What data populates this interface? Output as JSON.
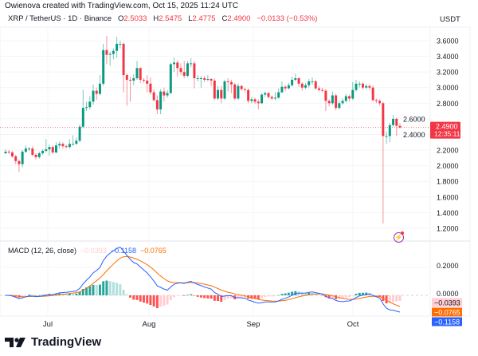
{
  "credit": "Owienova created with TradingView.com, Oct 15, 2025 11:24 UTC",
  "legend": {
    "symbol": "XRP / TetherUS · 1D · Binance",
    "o_label": "O",
    "o": "2.5033",
    "h_label": "H",
    "h": "2.5475",
    "l_label": "L",
    "l": "2.4775",
    "c_label": "C",
    "c": "2.4900",
    "change": "−0.0133 (−0.53%)"
  },
  "currency": "USDT",
  "price_axis": [
    "3.6000",
    "3.4000",
    "3.2000",
    "3.0000",
    "2.8000",
    "2.6000",
    "2.4000",
    "2.2000",
    "2.0000",
    "1.8000",
    "1.6000",
    "1.4000",
    "1.2000"
  ],
  "last_price": {
    "value": "2.4900",
    "countdown": "12:35:11"
  },
  "time_axis": [
    "Jul",
    "Aug",
    "Sep",
    "Oct"
  ],
  "macd": {
    "title": "MACD (12, 26, close)",
    "histogram_value": "−0.0393",
    "macd_value": "−0.1158",
    "signal_value": "−0.0765",
    "axis": [
      "0.2000",
      "0.0000"
    ]
  },
  "colors": {
    "up": "#089981",
    "down": "#f23645",
    "macd": "#2962ff",
    "signal": "#ff6d00",
    "hist_up": "#26a69a",
    "hist_up_light": "#b2dfdb",
    "hist_down": "#ff5252",
    "hist_down_light": "#ffcdd2"
  },
  "footer": {
    "brand": "TradingView"
  },
  "chart_data": {
    "type": "candlestick",
    "symbol": "XRP / TetherUS",
    "interval": "1D",
    "ylim": [
      1.1,
      3.75
    ],
    "first_open": 2.16,
    "close": [
      2.18,
      2.17,
      2.12,
      2.06,
      2.02,
      2.18,
      2.22,
      2.22,
      2.14,
      2.11,
      2.16,
      2.19,
      2.21,
      2.24,
      2.17,
      2.26,
      2.28,
      2.25,
      2.24,
      2.28,
      2.28,
      2.32,
      2.5,
      2.74,
      2.75,
      2.82,
      2.96,
      2.92,
      3.05,
      3.48,
      3.42,
      3.43,
      3.47,
      3.56,
      3.56,
      3.16,
      3.1,
      3.09,
      3.12,
      3.25,
      3.1,
      3.09,
      3.05,
      2.94,
      2.84,
      2.72,
      2.95,
      2.9,
      2.93,
      3.3,
      3.32,
      3.25,
      3.2,
      3.15,
      3.31,
      3.31,
      3.12,
      3.12,
      3.12,
      3.1,
      3.11,
      3.09,
      2.86,
      2.97,
      2.86,
      3.08,
      3.07,
      3.04,
      2.86,
      3.02,
      2.98,
      2.97,
      2.83,
      2.85,
      2.82,
      2.8,
      2.91,
      2.93,
      2.88,
      2.86,
      2.87,
      2.94,
      3.01,
      2.99,
      3.03,
      3.1,
      3.12,
      3.05,
      3.0,
      3.03,
      3.08,
      3.08,
      2.99,
      2.97,
      2.96,
      2.83,
      2.8,
      2.9,
      2.74,
      2.8,
      2.83,
      2.89,
      2.86,
      2.97,
      3.05,
      3.05,
      3.0,
      3.02,
      3.0,
      2.84,
      2.83,
      2.8,
      2.38,
      2.38,
      2.52,
      2.6,
      2.51,
      2.49
    ],
    "high": [
      2.21,
      2.2,
      2.19,
      2.14,
      2.08,
      2.2,
      2.26,
      2.24,
      2.25,
      2.16,
      2.18,
      2.21,
      2.34,
      2.27,
      2.26,
      2.3,
      2.31,
      2.3,
      2.27,
      2.34,
      2.39,
      2.36,
      2.53,
      2.97,
      2.82,
      2.89,
      3.04,
      3.0,
      3.16,
      3.56,
      3.66,
      3.46,
      3.5,
      3.65,
      3.6,
      3.58,
      3.18,
      3.14,
      3.17,
      3.34,
      3.26,
      3.12,
      3.16,
      3.13,
      2.98,
      2.9,
      2.98,
      3.0,
      2.97,
      3.32,
      3.38,
      3.35,
      3.31,
      3.34,
      3.34,
      3.38,
      3.34,
      3.16,
      3.15,
      3.15,
      3.16,
      3.12,
      3.12,
      3.02,
      3.02,
      3.1,
      3.12,
      3.1,
      3.06,
      3.05,
      3.04,
      3.0,
      2.99,
      2.88,
      2.87,
      2.85,
      2.93,
      2.95,
      2.94,
      2.9,
      2.94,
      2.99,
      3.08,
      3.03,
      3.06,
      3.14,
      3.18,
      3.13,
      3.07,
      3.06,
      3.11,
      3.13,
      3.1,
      3.02,
      3.0,
      2.98,
      2.85,
      2.95,
      2.92,
      2.83,
      2.86,
      2.92,
      2.91,
      3.07,
      3.1,
      3.08,
      3.07,
      3.05,
      3.04,
      3.03,
      2.86,
      2.85,
      2.82,
      2.44,
      2.55,
      2.65,
      2.62,
      2.5475
    ],
    "low": [
      2.15,
      2.15,
      2.1,
      2.02,
      1.92,
      1.98,
      2.16,
      2.19,
      2.12,
      2.08,
      2.09,
      2.14,
      2.17,
      2.13,
      2.15,
      2.16,
      2.22,
      2.22,
      2.22,
      2.22,
      2.26,
      2.27,
      2.3,
      2.48,
      2.7,
      2.72,
      2.78,
      2.84,
      2.9,
      3.02,
      3.3,
      3.28,
      3.36,
      3.38,
      3.5,
      2.94,
      2.77,
      2.82,
      3.03,
      3.1,
      3.06,
      3.06,
      2.94,
      2.91,
      2.82,
      2.66,
      2.66,
      2.82,
      2.87,
      2.92,
      3.2,
      3.14,
      3.16,
      3.12,
      3.13,
      3.26,
      2.99,
      3.08,
      3.0,
      3.07,
      3.08,
      3.02,
      2.84,
      2.84,
      2.8,
      2.84,
      2.95,
      2.93,
      2.84,
      2.84,
      2.96,
      2.94,
      2.8,
      2.8,
      2.79,
      2.72,
      2.79,
      2.88,
      2.86,
      2.84,
      2.84,
      2.86,
      2.93,
      2.96,
      2.98,
      3.01,
      3.08,
      3.01,
      2.96,
      2.98,
      3.0,
      3.04,
      2.97,
      2.95,
      2.94,
      2.7,
      2.76,
      2.78,
      2.71,
      2.72,
      2.78,
      2.81,
      2.82,
      2.84,
      2.95,
      3.0,
      2.98,
      2.98,
      2.97,
      2.82,
      2.8,
      2.77,
      1.26,
      2.28,
      2.3,
      2.5,
      2.38,
      2.4775
    ]
  }
}
